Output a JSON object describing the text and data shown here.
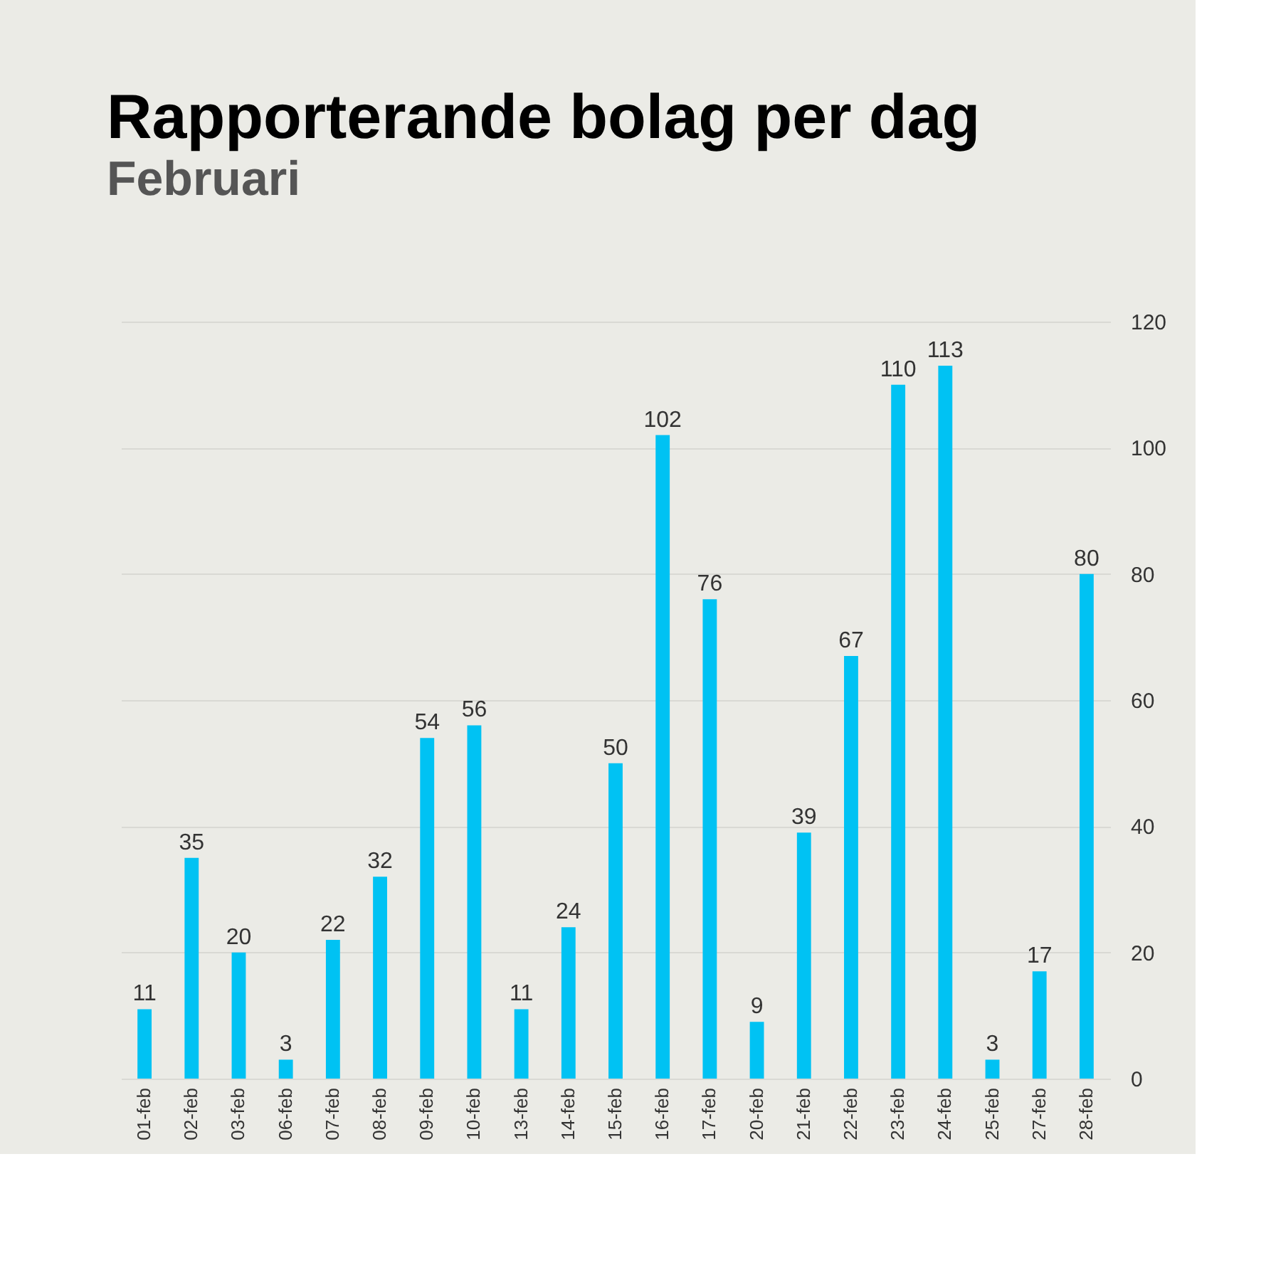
{
  "chart_data": {
    "type": "bar",
    "title": "Rapporterande bolag per dag",
    "subtitle": "Februari",
    "categories": [
      "01-feb",
      "02-feb",
      "03-feb",
      "06-feb",
      "07-feb",
      "08-feb",
      "09-feb",
      "10-feb",
      "13-feb",
      "14-feb",
      "15-feb",
      "16-feb",
      "17-feb",
      "20-feb",
      "21-feb",
      "22-feb",
      "23-feb",
      "24-feb",
      "25-feb",
      "27-feb",
      "28-feb"
    ],
    "values": [
      11,
      35,
      20,
      3,
      22,
      32,
      54,
      56,
      11,
      24,
      50,
      102,
      76,
      9,
      39,
      67,
      110,
      113,
      3,
      17,
      80
    ],
    "color": "#00c2f3",
    "ylim": [
      0,
      120
    ],
    "yticks": [
      0,
      20,
      40,
      60,
      80,
      100,
      120
    ],
    "grid": "y",
    "data_labels": true
  }
}
